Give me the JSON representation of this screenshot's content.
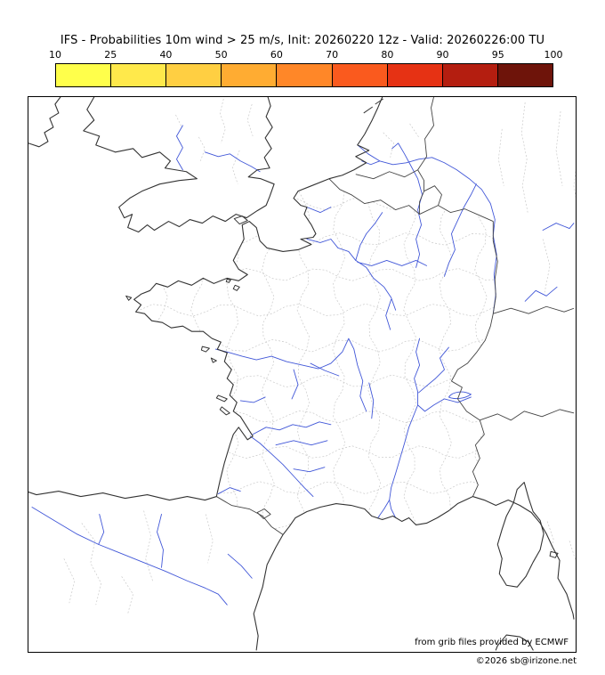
{
  "title": "IFS - Probabilities 10m wind > 25 m/s, Init: 20260220 12z - Valid: 20260226:00 TU",
  "colorbar": {
    "tick_labels": [
      "10",
      "25",
      "40",
      "50",
      "60",
      "70",
      "80",
      "90",
      "95",
      "100"
    ],
    "segment_colors": [
      "#ffff4b",
      "#ffe94b",
      "#ffcf42",
      "#ffac32",
      "#ff8728",
      "#fa5a1e",
      "#e63214",
      "#b41e10",
      "#6e140a"
    ]
  },
  "map": {
    "credits": {
      "line1": "from grib files provided by ECMWF",
      "line2": "©2026 sb@irizone.net"
    },
    "colors": {
      "coastline": "#333333",
      "border": "#444444",
      "river": "#4157d8",
      "admin": "#c9c9c9",
      "background": "#ffffff",
      "frame": "#000000"
    }
  }
}
